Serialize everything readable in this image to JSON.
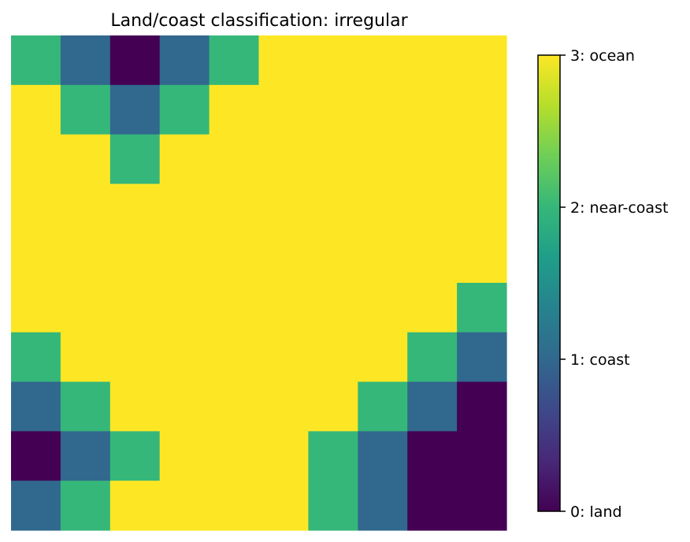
{
  "chart_data": {
    "type": "heatmap",
    "title": "Land/coast classification: irregular",
    "xlabel": "",
    "ylabel": "",
    "axes_visible": false,
    "grid": false,
    "colormap": "viridis",
    "vmin": 0,
    "vmax": 3,
    "rows": 10,
    "cols": 10,
    "values": [
      [
        2,
        1,
        0,
        1,
        2,
        3,
        3,
        3,
        3,
        3
      ],
      [
        3,
        2,
        1,
        2,
        3,
        3,
        3,
        3,
        3,
        3
      ],
      [
        3,
        3,
        2,
        3,
        3,
        3,
        3,
        3,
        3,
        3
      ],
      [
        3,
        3,
        3,
        3,
        3,
        3,
        3,
        3,
        3,
        3
      ],
      [
        3,
        3,
        3,
        3,
        3,
        3,
        3,
        3,
        3,
        3
      ],
      [
        3,
        3,
        3,
        3,
        3,
        3,
        3,
        3,
        3,
        2
      ],
      [
        2,
        3,
        3,
        3,
        3,
        3,
        3,
        3,
        2,
        1
      ],
      [
        1,
        2,
        3,
        3,
        3,
        3,
        3,
        2,
        1,
        0
      ],
      [
        0,
        1,
        2,
        3,
        3,
        3,
        2,
        1,
        0,
        0
      ],
      [
        1,
        2,
        3,
        3,
        3,
        3,
        2,
        1,
        0,
        0
      ]
    ],
    "colors": {
      "0": "#440154",
      "1": "#31688e",
      "2": "#35b779",
      "3": "#fde725"
    },
    "colorbar": {
      "placement": "right",
      "ticks": [
        {
          "value": 0,
          "label": "0: land"
        },
        {
          "value": 1,
          "label": "1: coast"
        },
        {
          "value": 2,
          "label": "2: near-coast"
        },
        {
          "value": 3,
          "label": "3: ocean"
        }
      ],
      "gradient_stops": [
        "#440154",
        "#482878",
        "#3e4989",
        "#31688e",
        "#26828e",
        "#1f9e89",
        "#35b779",
        "#6ece58",
        "#b5de2b",
        "#fde725"
      ]
    }
  }
}
